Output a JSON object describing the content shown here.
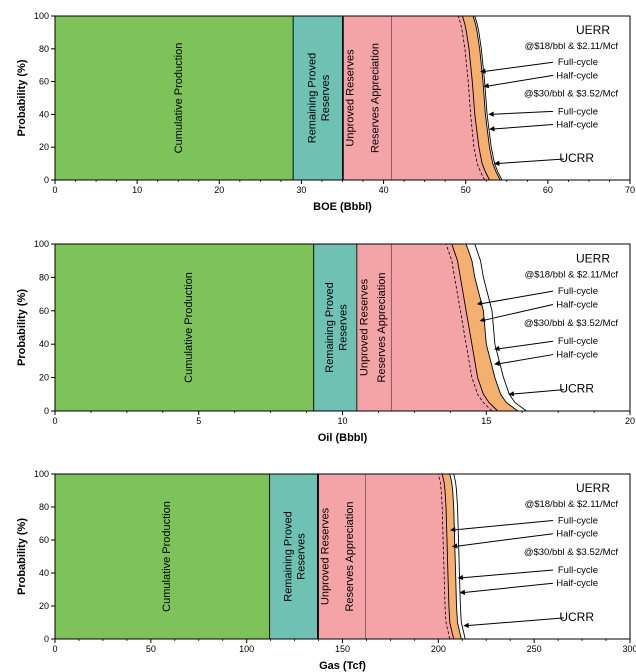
{
  "colors": {
    "cumulative": "#7dc35a",
    "remaining": "#6fc1b3",
    "unproved": "#9b97d8",
    "appreciation": "#f4a3a6",
    "uerr_band": "#f5b070",
    "frame": "#000000"
  },
  "chart_data": [
    {
      "type": "area",
      "xlabel": "BOE (Bbbl)",
      "ylabel": "Probability (%)",
      "xlim": [
        0,
        70
      ],
      "ylim": [
        0,
        100
      ],
      "xticks": [
        0,
        10,
        20,
        30,
        40,
        50,
        60,
        70
      ],
      "yticks": [
        0,
        20,
        40,
        60,
        80,
        100
      ],
      "regions": [
        {
          "name": "Cumulative Production",
          "x_start": 0,
          "x_end": 29
        },
        {
          "name": "Remaining Proved Reserves",
          "x_start": 29,
          "x_end": 35
        },
        {
          "name": "Unproved Reserves",
          "x_start": 35,
          "x_end": 35.1
        },
        {
          "name": "Reserves Appreciation",
          "x_start": 35.1,
          "x_end": 41
        }
      ],
      "curves": {
        "probability": [
          0,
          5,
          10,
          20,
          40,
          60,
          80,
          90,
          95,
          100
        ],
        "inner_dashed": [
          52.3,
          51.8,
          51.4,
          51.0,
          50.6,
          50.3,
          49.9,
          49.6,
          49.4,
          49.1
        ],
        "pink_edge": [
          52.9,
          52.4,
          52.0,
          51.6,
          51.1,
          50.8,
          50.4,
          50.1,
          49.9,
          49.6
        ],
        "orange_edge": [
          54.2,
          53.7,
          53.3,
          52.9,
          52.4,
          52.1,
          51.7,
          51.4,
          51.2,
          50.9
        ],
        "ucrr": [
          54.4,
          53.9,
          53.5,
          53.1,
          52.6,
          52.3,
          51.9,
          51.6,
          51.4,
          51.1
        ]
      },
      "annotations": {
        "title": "UERR",
        "price1": "@$18/bbl & $2.11/Mcf",
        "price2": "@$30/bbl & $3.52/Mcf",
        "full_cycle": "Full-cycle",
        "half_cycle": "Half-cycle",
        "ucrr": "UCRR"
      },
      "arrow_targets": [
        {
          "label": "full1",
          "x": 51.5,
          "y": 66
        },
        {
          "label": "half1",
          "x": 51.9,
          "y": 57
        },
        {
          "label": "full2",
          "x": 52.5,
          "y": 40
        },
        {
          "label": "half2",
          "x": 52.6,
          "y": 31
        },
        {
          "label": "ucrr",
          "x": 53.2,
          "y": 10
        }
      ]
    },
    {
      "type": "area",
      "xlabel": "Oil (Bbbl)",
      "ylabel": "Probability (%)",
      "xlim": [
        0,
        20
      ],
      "ylim": [
        0,
        100
      ],
      "xticks": [
        0,
        5,
        10,
        15,
        20
      ],
      "yticks": [
        0,
        20,
        40,
        60,
        80,
        100
      ],
      "regions": [
        {
          "name": "Cumulative Production",
          "x_start": 0,
          "x_end": 9
        },
        {
          "name": "Remaining Proved Reserves",
          "x_start": 9,
          "x_end": 10.5
        },
        {
          "name": "Unproved Reserves",
          "x_start": 10.5,
          "x_end": 10.5
        },
        {
          "name": "Reserves Appreciation",
          "x_start": 10.5,
          "x_end": 11.7
        }
      ],
      "curves": {
        "probability": [
          0,
          5,
          10,
          20,
          40,
          60,
          80,
          90,
          95,
          100
        ],
        "inner_dashed": [
          15.2,
          14.9,
          14.7,
          14.5,
          14.3,
          14.1,
          13.9,
          13.8,
          13.7,
          13.6
        ],
        "pink_edge": [
          15.4,
          15.1,
          14.9,
          14.7,
          14.5,
          14.3,
          14.1,
          14.0,
          13.9,
          13.8
        ],
        "orange_edge": [
          16.1,
          15.7,
          15.5,
          15.3,
          15.0,
          14.9,
          14.6,
          14.5,
          14.4,
          14.3
        ],
        "ucrr": [
          16.4,
          16.0,
          15.8,
          15.6,
          15.3,
          15.2,
          14.9,
          14.8,
          14.7,
          14.6
        ]
      },
      "annotations": {
        "title": "UERR",
        "price1": "@$18/bbl & $2.11/Mcf",
        "price2": "@$30/bbl & $3.52/Mcf",
        "full_cycle": "Full-cycle",
        "half_cycle": "Half-cycle",
        "ucrr": "UCRR"
      },
      "arrow_targets": [
        {
          "label": "full1",
          "x": 14.6,
          "y": 64
        },
        {
          "label": "half1",
          "x": 14.7,
          "y": 54
        },
        {
          "label": "full2",
          "x": 15.2,
          "y": 37
        },
        {
          "label": "half2",
          "x": 15.2,
          "y": 28
        },
        {
          "label": "ucrr",
          "x": 15.7,
          "y": 10
        }
      ]
    },
    {
      "type": "area",
      "xlabel": "Gas (Tcf)",
      "ylabel": "Probability (%)",
      "xlim": [
        0,
        300
      ],
      "ylim": [
        0,
        100
      ],
      "xticks": [
        0,
        50,
        100,
        150,
        200,
        250,
        300
      ],
      "yticks": [
        0,
        20,
        40,
        60,
        80,
        100
      ],
      "tick_labels_x": [
        "0",
        "50",
        "100",
        "150",
        "200",
        "250",
        "300"
      ],
      "regions": [
        {
          "name": "Cumulative Production",
          "x_start": 0,
          "x_end": 112
        },
        {
          "name": "Remaining Proved Reserves",
          "x_start": 112,
          "x_end": 137
        },
        {
          "name": "Unproved Reserves",
          "x_start": 137,
          "x_end": 137.5
        },
        {
          "name": "Reserves Appreciation",
          "x_start": 137.5,
          "x_end": 162
        }
      ],
      "curves": {
        "probability": [
          0,
          5,
          10,
          20,
          40,
          60,
          80,
          90,
          95,
          100
        ],
        "inner_dashed": [
          206,
          205,
          204,
          203.5,
          203,
          202.5,
          202,
          201.5,
          201,
          200
        ],
        "pink_edge": [
          208,
          207,
          206,
          205.5,
          205,
          204.5,
          204,
          203.5,
          203,
          202
        ],
        "orange_edge": [
          212,
          211,
          210,
          209.5,
          209,
          208.5,
          208,
          207.5,
          207,
          206
        ],
        "ucrr": [
          214,
          213,
          212,
          211.5,
          211,
          210.5,
          210,
          209.5,
          209,
          208
        ]
      },
      "annotations": {
        "title": "UERR",
        "price1": "@$18/bbl & $2.11/Mcf",
        "price2": "@$30/bbl & $3.52/Mcf",
        "full_cycle": "Full-cycle",
        "half_cycle": "Half-cycle",
        "ucrr": "UCRR"
      },
      "arrow_targets": [
        {
          "label": "full1",
          "x": 205,
          "y": 66
        },
        {
          "label": "half1",
          "x": 206,
          "y": 56
        },
        {
          "label": "full2",
          "x": 209,
          "y": 37
        },
        {
          "label": "half2",
          "x": 210,
          "y": 28
        },
        {
          "label": "ucrr",
          "x": 212,
          "y": 8
        }
      ]
    }
  ]
}
